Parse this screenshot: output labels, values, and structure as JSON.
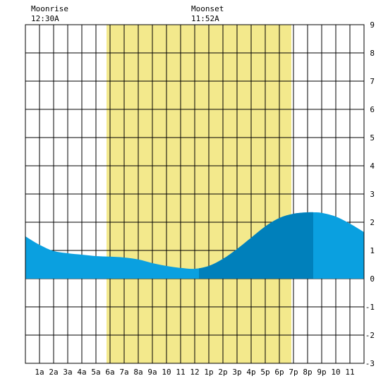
{
  "header": {
    "moonrise_label": "Moonrise",
    "moonrise_time": "12:30A",
    "moonset_label": "Moonset",
    "moonset_time": "11:52A"
  },
  "chart_data": {
    "type": "area",
    "x_range": [
      0,
      24
    ],
    "ylim": [
      -3,
      9
    ],
    "y_ticks": [
      -3,
      -2,
      -1,
      0,
      1,
      2,
      3,
      4,
      5,
      6,
      7,
      8,
      9
    ],
    "x_tick_labels": [
      "1a",
      "2a",
      "3a",
      "4a",
      "5a",
      "6a",
      "7a",
      "8a",
      "9a",
      "10",
      "11",
      "12",
      "1p",
      "2p",
      "3p",
      "4p",
      "5p",
      "6p",
      "7p",
      "8p",
      "9p",
      "10",
      "11"
    ],
    "daylight_hours": [
      5.75,
      18.85
    ],
    "moonrise_hour": 0.5,
    "moonset_hour": 11.87,
    "highlight_range": [
      12.3,
      20.4
    ],
    "colors": {
      "daylight": "#f3e98c",
      "tide": "#0aa0e0",
      "tide_highlight": "#0080bb",
      "grid": "#000000",
      "background": "#ffffff"
    },
    "series": [
      {
        "x": [
          0,
          1,
          2,
          3,
          4,
          5,
          6,
          7,
          8,
          9,
          10,
          11,
          12,
          13,
          14,
          15,
          16,
          17,
          18,
          19,
          20,
          20.5,
          21,
          22,
          23,
          24
        ],
        "y": [
          1.5,
          1.2,
          0.98,
          0.9,
          0.85,
          0.8,
          0.78,
          0.75,
          0.68,
          0.55,
          0.45,
          0.38,
          0.35,
          0.45,
          0.7,
          1.05,
          1.45,
          1.85,
          2.15,
          2.3,
          2.35,
          2.35,
          2.33,
          2.2,
          1.95,
          1.65
        ]
      }
    ]
  }
}
